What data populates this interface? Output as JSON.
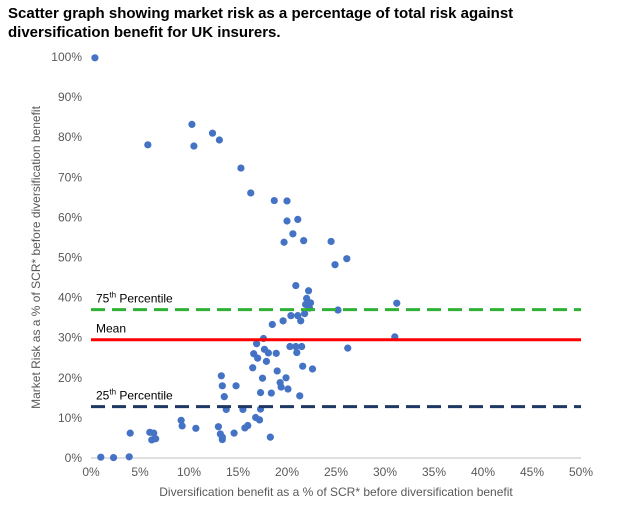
{
  "chart_data": {
    "type": "scatter",
    "title": "Scatter graph showing market risk as a percentage of total risk against diversification benefit for UK insurers.",
    "xlabel": "Diversification benefit as a % of SCR* before diversification benefit",
    "ylabel": "Market Risk as a % of SCR* before diversification benefit",
    "xlim": [
      0,
      50
    ],
    "ylim": [
      0,
      100
    ],
    "x_ticks": [
      "0%",
      "5%",
      "10%",
      "15%",
      "20%",
      "25%",
      "30%",
      "35%",
      "40%",
      "45%",
      "50%"
    ],
    "y_ticks": [
      "0%",
      "10%",
      "20%",
      "30%",
      "40%",
      "50%",
      "60%",
      "70%",
      "80%",
      "90%",
      "100%"
    ],
    "grid": false,
    "point_color": "#4472C4",
    "reference_lines": [
      {
        "name": "75th Percentile",
        "label_main": "75",
        "label_sup": "th",
        "label_rest": " Percentile",
        "value": 37,
        "color": "#2EB135",
        "style": "dashed"
      },
      {
        "name": "Mean",
        "label_main": "Mean",
        "label_sup": "",
        "label_rest": "",
        "value": 29.5,
        "color": "#FF0000",
        "style": "solid"
      },
      {
        "name": "25th Percentile",
        "label_main": "25",
        "label_sup": "th",
        "label_rest": " Percentile",
        "value": 12.8,
        "color": "#1F3864",
        "style": "dashed"
      }
    ],
    "series": [
      {
        "name": "UK insurers",
        "points": [
          [
            0.4,
            99.8
          ],
          [
            1.0,
            0.2
          ],
          [
            2.3,
            0.1
          ],
          [
            3.9,
            0.3
          ],
          [
            4.0,
            6.2
          ],
          [
            5.8,
            78.1
          ],
          [
            6.0,
            6.4
          ],
          [
            6.2,
            4.5
          ],
          [
            6.4,
            6.2
          ],
          [
            6.6,
            4.8
          ],
          [
            9.2,
            9.4
          ],
          [
            9.3,
            8.0
          ],
          [
            10.3,
            83.2
          ],
          [
            10.5,
            77.8
          ],
          [
            10.7,
            7.4
          ],
          [
            12.4,
            81.0
          ],
          [
            13.1,
            79.3
          ],
          [
            13.0,
            7.8
          ],
          [
            13.2,
            6.0
          ],
          [
            13.4,
            4.6
          ],
          [
            13.4,
            5.2
          ],
          [
            13.3,
            20.5
          ],
          [
            13.4,
            18.0
          ],
          [
            13.6,
            15.3
          ],
          [
            13.8,
            12.1
          ],
          [
            14.6,
            6.2
          ],
          [
            14.8,
            18.0
          ],
          [
            15.3,
            72.3
          ],
          [
            15.5,
            12.1
          ],
          [
            15.7,
            7.5
          ],
          [
            16.0,
            8.1
          ],
          [
            16.3,
            66.1
          ],
          [
            16.5,
            22.5
          ],
          [
            16.6,
            26.0
          ],
          [
            16.8,
            10.1
          ],
          [
            16.9,
            28.5
          ],
          [
            17.0,
            24.9
          ],
          [
            17.2,
            9.5
          ],
          [
            17.3,
            16.3
          ],
          [
            17.3,
            12.2
          ],
          [
            17.5,
            19.9
          ],
          [
            17.6,
            29.8
          ],
          [
            17.7,
            27.1
          ],
          [
            17.9,
            24.1
          ],
          [
            18.1,
            26.2
          ],
          [
            18.3,
            5.2
          ],
          [
            18.4,
            16.2
          ],
          [
            18.5,
            33.3
          ],
          [
            18.7,
            64.2
          ],
          [
            18.9,
            26.1
          ],
          [
            19.0,
            21.7
          ],
          [
            19.3,
            18.8
          ],
          [
            19.4,
            17.7
          ],
          [
            19.6,
            34.2
          ],
          [
            19.7,
            53.8
          ],
          [
            19.9,
            20.0
          ],
          [
            20.0,
            64.1
          ],
          [
            20.0,
            59.1
          ],
          [
            20.1,
            17.2
          ],
          [
            20.3,
            27.8
          ],
          [
            20.4,
            35.5
          ],
          [
            20.6,
            55.9
          ],
          [
            20.9,
            43.0
          ],
          [
            20.9,
            27.8
          ],
          [
            21.0,
            26.3
          ],
          [
            21.1,
            35.5
          ],
          [
            21.1,
            59.5
          ],
          [
            21.3,
            15.5
          ],
          [
            21.4,
            34.2
          ],
          [
            21.5,
            27.8
          ],
          [
            21.6,
            22.9
          ],
          [
            21.7,
            54.2
          ],
          [
            21.8,
            36.0
          ],
          [
            21.9,
            38.3
          ],
          [
            22.0,
            39.8
          ],
          [
            22.2,
            41.7
          ],
          [
            22.3,
            37.4
          ],
          [
            22.4,
            38.7
          ],
          [
            22.6,
            22.2
          ],
          [
            24.5,
            54.0
          ],
          [
            24.9,
            48.2
          ],
          [
            25.2,
            36.9
          ],
          [
            26.1,
            49.7
          ],
          [
            26.2,
            27.4
          ],
          [
            31.0,
            30.2
          ],
          [
            31.2,
            38.6
          ]
        ]
      }
    ]
  }
}
